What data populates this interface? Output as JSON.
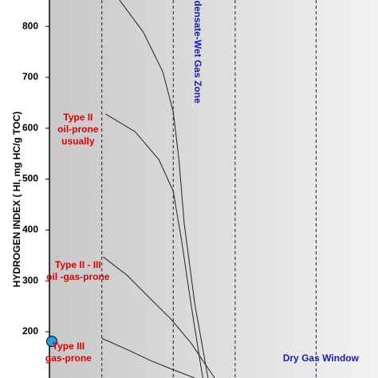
{
  "chart_data": {
    "type": "line",
    "ylabel": "HYDROGEN INDEX ( HI, mg HC/g TOC)",
    "ylim": [
      109,
      852
    ],
    "yticks": [
      200,
      300,
      400,
      500,
      600,
      700,
      800
    ],
    "xlim": [
      424,
      493
    ],
    "boundaries": [
      435,
      450,
      463,
      480
    ],
    "series": [
      {
        "x": [
          438.7,
          443.7,
          447.8,
          450,
          451.2,
          452.3,
          454.5,
          457.3
        ],
        "values": [
          852,
          789,
          711,
          632,
          538,
          413,
          256,
          109
        ],
        "color": "#222222"
      },
      {
        "x": [
          435.8,
          442,
          447,
          450,
          451.7,
          453.7,
          456.2
        ],
        "values": [
          628,
          593,
          538,
          476,
          382,
          256,
          109
        ],
        "color": "#222222"
      },
      {
        "x": [
          435.3,
          440.3,
          445.3,
          449.5,
          453.7,
          458.7
        ],
        "values": [
          347,
          311,
          264,
          225,
          178,
          109
        ],
        "color": "#222222"
      },
      {
        "x": [
          435,
          440.3,
          445.3,
          449.5,
          454.5
        ],
        "values": [
          187,
          165,
          143,
          127,
          109
        ],
        "color": "#222222"
      }
    ],
    "points": {
      "x": [
        424.5
      ],
      "values": [
        181
      ],
      "color": "#1ea0e6"
    },
    "annotations": [
      {
        "lines": [
          "Type II",
          "oil-prone",
          "usually"
        ],
        "x": 430,
        "y": 620
      },
      {
        "lines": [
          "Type II - III",
          "oil -gas-prone"
        ],
        "x": 430,
        "y": 330
      },
      {
        "lines": [
          "Type III",
          "gas-prone"
        ],
        "x": 428,
        "y": 170
      }
    ],
    "zones": [
      {
        "text": "densate-Wet Gas Zone",
        "x": 455,
        "y": 750,
        "rotate": true
      },
      {
        "text": "Dry Gas Window",
        "x": 481,
        "y": 147,
        "rotate": false
      }
    ]
  }
}
